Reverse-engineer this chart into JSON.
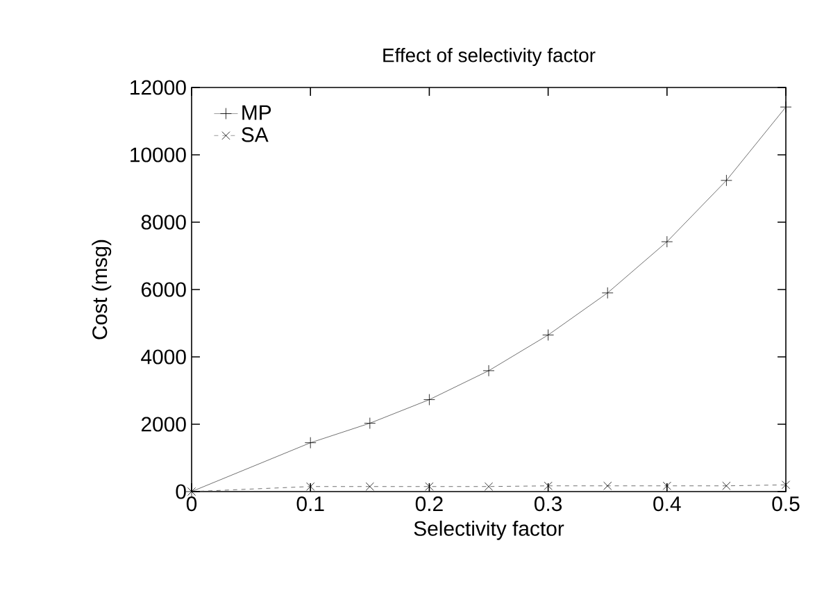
{
  "chart_data": {
    "type": "line",
    "title": "Effect of selectivity factor",
    "xlabel": "Selectivity factor",
    "ylabel": "Cost (msg)",
    "x": [
      0,
      0.1,
      0.15,
      0.2,
      0.25,
      0.3,
      0.35,
      0.4,
      0.45,
      0.5
    ],
    "series": [
      {
        "name": "MP",
        "color": "#000000",
        "marker": "plus",
        "line_style": "solid",
        "values": [
          0,
          1450,
          2030,
          2730,
          3590,
          4650,
          5900,
          7420,
          9240,
          11420
        ]
      },
      {
        "name": "SA",
        "color": "#000000",
        "marker": "cross",
        "line_style": "dashed",
        "values": [
          0,
          150,
          150,
          150,
          150,
          170,
          170,
          170,
          170,
          200
        ]
      }
    ],
    "xlim": [
      0,
      0.5
    ],
    "xticks": [
      0,
      0.1,
      0.2,
      0.3,
      0.4,
      0.5
    ],
    "ylim": [
      0,
      12000
    ],
    "yticks": [
      0,
      2000,
      4000,
      6000,
      8000,
      10000,
      12000
    ],
    "legend": "top left",
    "grid": false
  }
}
